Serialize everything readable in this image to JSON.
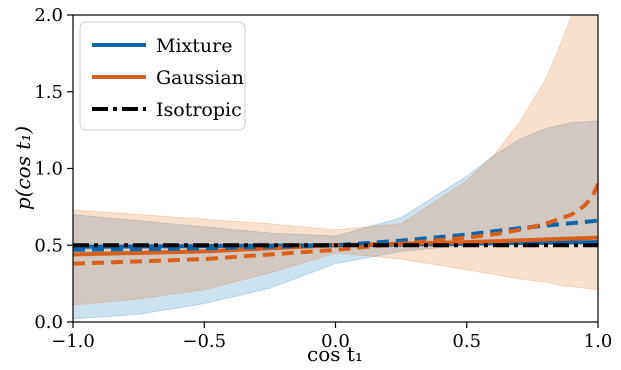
{
  "chart_data": {
    "type": "line",
    "xlabel": "cos t₁",
    "ylabel": "p(cos t₁)",
    "xlim": [
      -1.0,
      1.0
    ],
    "ylim": [
      0.0,
      2.0
    ],
    "xticks": [
      "−1.0",
      "−0.5",
      "0.0",
      "0.5",
      "1.0"
    ],
    "yticks": [
      "0.0",
      "0.5",
      "1.0",
      "1.5",
      "2.0"
    ],
    "grid": false,
    "legend_position": "top-left",
    "colors": {
      "mixture": "#1f77b4",
      "mixture_line": "#0a66a8",
      "gaussian": "#e07020",
      "gaussian_line": "#d9601a",
      "isotropic": "#000000"
    },
    "legend": [
      {
        "label": "Mixture",
        "style": "solid",
        "color": "#0a66a8"
      },
      {
        "label": "Gaussian",
        "style": "solid",
        "color": "#d9601a"
      },
      {
        "label": "Isotropic",
        "style": "dashdot",
        "color": "#000000"
      }
    ],
    "series": [
      {
        "name": "Mixture",
        "style": "solid",
        "x": [
          -1.0,
          0.0,
          1.0
        ],
        "y": [
          0.49,
          0.5,
          0.52
        ]
      },
      {
        "name": "Mixture",
        "style": "dashed",
        "x": [
          -1.0,
          -0.5,
          0.0,
          0.25,
          0.5,
          0.75,
          1.0
        ],
        "y": [
          0.47,
          0.48,
          0.5,
          0.53,
          0.57,
          0.62,
          0.66
        ]
      },
      {
        "name": "Gaussian",
        "style": "solid",
        "x": [
          -1.0,
          -0.5,
          0.0,
          0.5,
          1.0
        ],
        "y": [
          0.44,
          0.46,
          0.5,
          0.52,
          0.55
        ]
      },
      {
        "name": "Gaussian",
        "style": "dashed",
        "x": [
          -1.0,
          -0.5,
          0.0,
          0.25,
          0.5,
          0.6,
          0.7,
          0.8,
          0.85,
          0.9,
          0.95,
          0.98,
          1.0
        ],
        "y": [
          0.38,
          0.41,
          0.47,
          0.51,
          0.55,
          0.57,
          0.6,
          0.64,
          0.67,
          0.7,
          0.76,
          0.82,
          0.9
        ]
      },
      {
        "name": "Isotropic",
        "style": "dashdot",
        "x": [
          -1.0,
          1.0
        ],
        "y": [
          0.5,
          0.5
        ]
      }
    ],
    "bands": [
      {
        "name": "Mixture",
        "x": [
          -1.0,
          -0.75,
          -0.5,
          -0.25,
          0.0,
          0.25,
          0.5,
          0.6,
          0.7,
          0.8,
          0.9,
          1.0
        ],
        "lower": [
          0.02,
          0.05,
          0.12,
          0.22,
          0.38,
          0.46,
          0.5,
          0.51,
          0.52,
          0.52,
          0.52,
          0.52
        ],
        "upper": [
          0.7,
          0.66,
          0.62,
          0.58,
          0.56,
          0.68,
          0.95,
          1.08,
          1.19,
          1.26,
          1.3,
          1.31
        ]
      },
      {
        "name": "Gaussian",
        "x": [
          -1.0,
          -0.75,
          -0.5,
          -0.25,
          0.0,
          0.25,
          0.5,
          0.6,
          0.7,
          0.8,
          0.85,
          0.9,
          0.95,
          1.0
        ],
        "lower": [
          0.11,
          0.15,
          0.21,
          0.32,
          0.45,
          0.41,
          0.34,
          0.31,
          0.28,
          0.26,
          0.24,
          0.23,
          0.22,
          0.21
        ],
        "upper": [
          0.73,
          0.7,
          0.67,
          0.64,
          0.6,
          0.64,
          0.92,
          1.08,
          1.3,
          1.58,
          1.78,
          2.0,
          2.0,
          2.0
        ]
      }
    ]
  }
}
